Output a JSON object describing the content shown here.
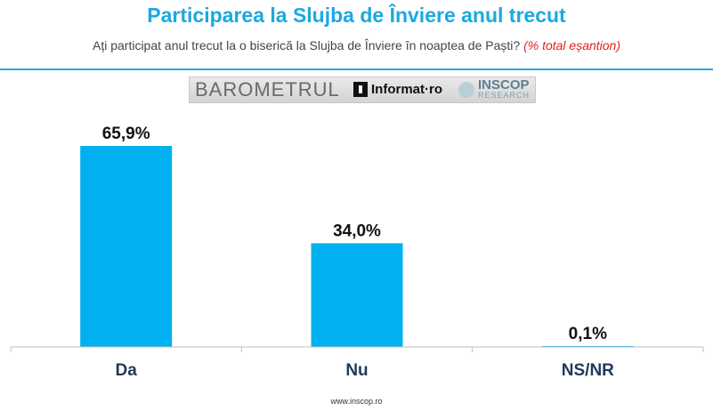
{
  "header": {
    "title": "Participarea la Slujba de Înviere anul trecut",
    "subtitle": "Ați participat anul trecut la o biserică la Slujba de Înviere în noaptea de Paști?",
    "subtitle_note": "(% total eșantion)"
  },
  "logo": {
    "barometer_text": "BAROMETRUL",
    "informat_text": "Informat·ro",
    "inscop_text": "INSCOP",
    "research_text": "RESEARCH"
  },
  "chart_data": {
    "type": "bar",
    "categories": [
      "Da",
      "Nu",
      "NS/NR"
    ],
    "values": [
      65.9,
      34.0,
      0.1
    ],
    "value_labels": [
      "65,9%",
      "34,0%",
      "0,1%"
    ],
    "ylim": [
      0,
      70
    ],
    "grid": false,
    "bar_color": "#00b0f0"
  },
  "footer": {
    "url": "www.inscop.ro"
  }
}
